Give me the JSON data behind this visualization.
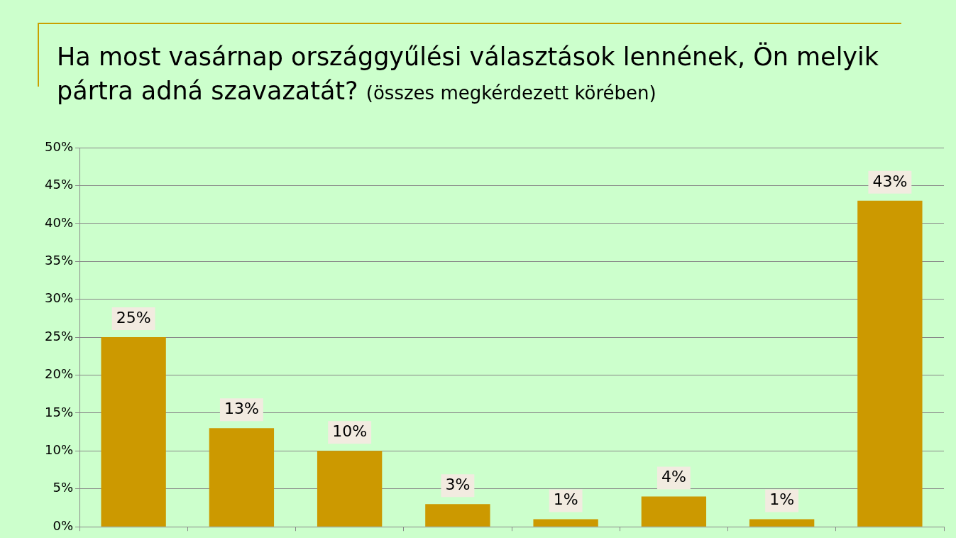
{
  "chart_data": {
    "type": "bar",
    "title": "Ha most vasárnap országgyűlési választások lennének, Ön melyik pártra adná szavazatát?",
    "subtitle": "(összes megkérdezett körében)",
    "categories": [
      null,
      null,
      null,
      null,
      null,
      null,
      null,
      null
    ],
    "values": [
      25,
      13,
      10,
      3,
      1,
      4,
      1,
      43
    ],
    "value_labels": [
      "25%",
      "13%",
      "10%",
      "3%",
      "1%",
      "4%",
      "1%",
      "43%"
    ],
    "color": "#cc9900",
    "ylim": [
      0,
      50
    ],
    "yticks": [
      {
        "value": 0,
        "label": "0%"
      },
      {
        "value": 5,
        "label": "5%"
      },
      {
        "value": 10,
        "label": "10%"
      },
      {
        "value": 15,
        "label": "15%"
      },
      {
        "value": 20,
        "label": "20%"
      },
      {
        "value": 25,
        "label": "25%"
      },
      {
        "value": 30,
        "label": "30%"
      },
      {
        "value": 35,
        "label": "35%"
      },
      {
        "value": 40,
        "label": "40%"
      },
      {
        "value": 45,
        "label": "45%"
      },
      {
        "value": 50,
        "label": "50%"
      }
    ],
    "grid": "y",
    "tick_labels": "y",
    "legend": false
  }
}
